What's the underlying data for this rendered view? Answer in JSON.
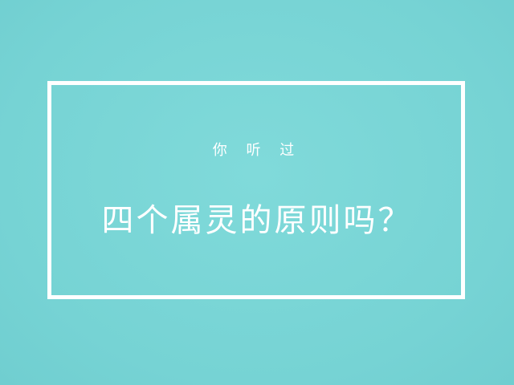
{
  "slide": {
    "subtitle": "你 听 过",
    "title": "四个属灵的原则吗？"
  },
  "colors": {
    "background": "#78D6D6",
    "frame": "#FFFFFF",
    "text": "#FFFFFF"
  }
}
